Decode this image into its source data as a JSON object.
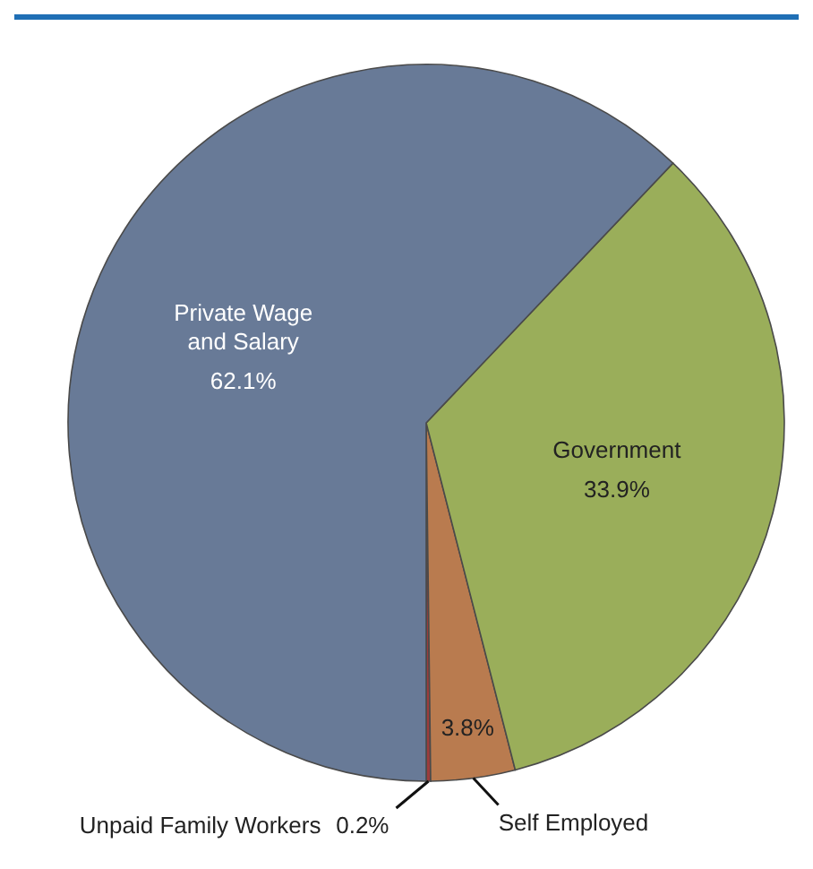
{
  "chart_data": {
    "type": "pie",
    "categories": [
      "Unpaid Family Workers",
      "Self Employed",
      "Government",
      "Private Wage and Salary"
    ],
    "values": [
      0.2,
      3.8,
      33.9,
      62.1
    ],
    "colors": [
      "#9c3b3b",
      "#b97b4f",
      "#9aae5a",
      "#687a97"
    ],
    "value_labels": [
      "0.2%",
      "3.8%",
      "33.9%",
      "62.1%"
    ]
  }
}
